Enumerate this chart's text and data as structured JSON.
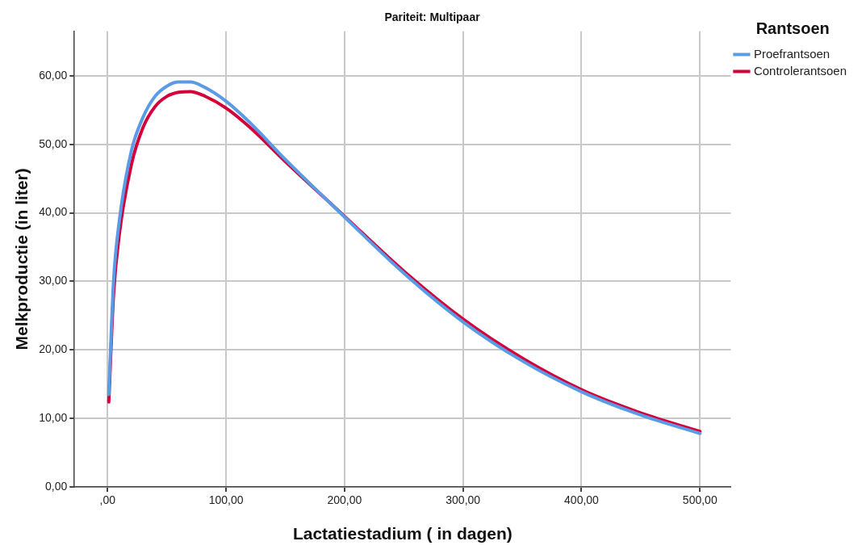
{
  "chart_data": {
    "type": "line",
    "title": "Pariteit: Multipaar",
    "xlabel": "Lactatiestadium ( in dagen)",
    "ylabel": "Melkproductie (in liter)",
    "legend_title": "Rantsoen",
    "legend": "top right",
    "grid": true,
    "marker": "none",
    "line_style": "solid",
    "xlim": [
      -28,
      526
    ],
    "ylim": [
      0,
      66.5
    ],
    "xticks": [
      {
        "value": 0,
        "label": ",00"
      },
      {
        "value": 100,
        "label": "100,00"
      },
      {
        "value": 200,
        "label": "200,00"
      },
      {
        "value": 300,
        "label": "300,00"
      },
      {
        "value": 400,
        "label": "400,00"
      },
      {
        "value": 500,
        "label": "500,00"
      }
    ],
    "yticks": [
      {
        "value": 0,
        "label": "0,00"
      },
      {
        "value": 10,
        "label": "10,00"
      },
      {
        "value": 20,
        "label": "20,00"
      },
      {
        "value": 30,
        "label": "30,00"
      },
      {
        "value": 40,
        "label": "40,00"
      },
      {
        "value": 50,
        "label": "50,00"
      },
      {
        "value": 60,
        "label": "60,00"
      }
    ],
    "x": [
      1,
      5,
      10,
      20,
      30,
      40,
      50,
      60,
      70,
      80,
      100,
      120,
      150,
      200,
      250,
      300,
      350,
      400,
      450,
      500
    ],
    "series": [
      {
        "name": "Proefrantsoen",
        "color": "#5b9be6",
        "values": [
          13.5,
          30,
          39,
          49,
          54,
          57,
          58.5,
          59.1,
          59.1,
          58.5,
          56.3,
          53.2,
          47.8,
          39.4,
          31.2,
          24.1,
          18.4,
          13.9,
          10.5,
          7.8
        ]
      },
      {
        "name": "Controlerantsoen",
        "color": "#d4003a",
        "values": [
          12.4,
          28,
          37,
          47,
          52.5,
          55.5,
          57,
          57.6,
          57.7,
          57.2,
          55.3,
          52.5,
          47.5,
          39.5,
          31.5,
          24.5,
          18.8,
          14.2,
          10.8,
          8.1
        ]
      }
    ]
  }
}
